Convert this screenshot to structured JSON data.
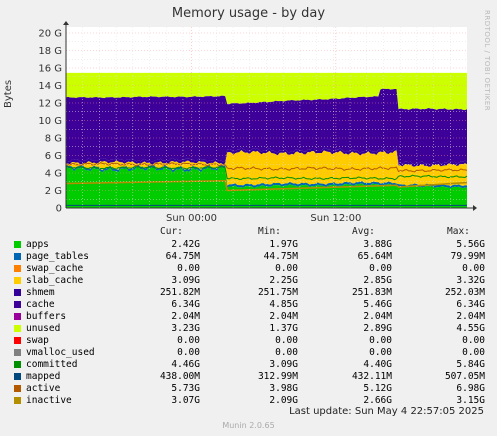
{
  "chart_data": {
    "type": "area",
    "title": "Memory usage - by day",
    "side_text": "RRDTOOL / TOBI OETIKER",
    "ylabel": "Bytes",
    "y_ticks": [
      "0",
      "2 G",
      "4 G",
      "6 G",
      "8 G",
      "10 G",
      "12 G",
      "14 G",
      "16 G",
      "18 G",
      "20 G"
    ],
    "ylim": [
      0,
      20
    ],
    "x_ticks": [
      "Sun 00:00",
      "Sun 12:00"
    ],
    "grid": true,
    "legend_headers": [
      "Cur:",
      "Min:",
      "Avg:",
      "Max:"
    ],
    "series": [
      {
        "name": "apps",
        "color": "#00cc00",
        "values": [
          "2.42G",
          "1.97G",
          "3.88G",
          "5.56G"
        ]
      },
      {
        "name": "page_tables",
        "color": "#0066b3",
        "values": [
          "64.75M",
          "44.75M",
          "65.64M",
          "79.99M"
        ]
      },
      {
        "name": "swap_cache",
        "color": "#ff8000",
        "values": [
          "0.00",
          "0.00",
          "0.00",
          "0.00"
        ]
      },
      {
        "name": "slab_cache",
        "color": "#ffcc00",
        "values": [
          "3.09G",
          "2.25G",
          "2.85G",
          "3.32G"
        ]
      },
      {
        "name": "shmem",
        "color": "#330099",
        "values": [
          "251.82M",
          "251.75M",
          "251.83M",
          "252.03M"
        ]
      },
      {
        "name": "cache",
        "color": "#3d0099",
        "values": [
          "6.34G",
          "4.85G",
          "5.46G",
          "6.34G"
        ]
      },
      {
        "name": "buffers",
        "color": "#990099",
        "values": [
          "2.04M",
          "2.04M",
          "2.04M",
          "2.04M"
        ]
      },
      {
        "name": "unused",
        "color": "#ccff00",
        "values": [
          "3.23G",
          "1.37G",
          "2.89G",
          "4.55G"
        ]
      },
      {
        "name": "swap",
        "color": "#ff0000",
        "values": [
          "0.00",
          "0.00",
          "0.00",
          "0.00"
        ]
      },
      {
        "name": "vmalloc_used",
        "color": "#808080",
        "values": [
          "0.00",
          "0.00",
          "0.00",
          "0.00"
        ]
      },
      {
        "name": "committed",
        "color": "#008f00",
        "values": [
          "4.46G",
          "3.09G",
          "4.40G",
          "5.84G"
        ]
      },
      {
        "name": "mapped",
        "color": "#00487d",
        "values": [
          "438.00M",
          "312.99M",
          "432.11M",
          "507.05M"
        ]
      },
      {
        "name": "active",
        "color": "#b35a00",
        "values": [
          "5.73G",
          "3.98G",
          "5.12G",
          "6.98G"
        ]
      },
      {
        "name": "inactive",
        "color": "#b38f00",
        "values": [
          "3.07G",
          "2.09G",
          "2.66G",
          "3.15G"
        ]
      }
    ],
    "last_update": "Last update: Sun May  4 22:57:05 2025",
    "footer": "Munin 2.0.65"
  }
}
